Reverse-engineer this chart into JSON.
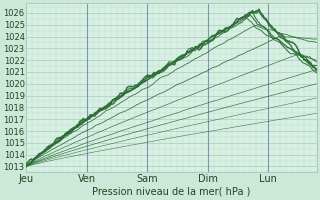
{
  "bg_color": "#cce8d8",
  "plot_bg_color": "#d8f0e4",
  "grid_major_color": "#aaccbb",
  "grid_minor_color": "#bbddcc",
  "line_color": "#2d6b35",
  "ylabel_text": "Pression niveau de la mer( hPa )",
  "xtick_labels": [
    "Jeu",
    "Ven",
    "Sam",
    "Dim",
    "Lun"
  ],
  "xtick_positions": [
    0,
    1,
    2,
    3,
    4
  ],
  "xlim": [
    0,
    4.8
  ],
  "ylim": [
    1012.5,
    1026.8
  ],
  "yticks": [
    1013,
    1014,
    1015,
    1016,
    1017,
    1018,
    1019,
    1020,
    1021,
    1022,
    1023,
    1024,
    1025,
    1026
  ],
  "vline_positions": [
    1,
    2,
    3,
    4
  ],
  "vline_color": "#7799aa"
}
